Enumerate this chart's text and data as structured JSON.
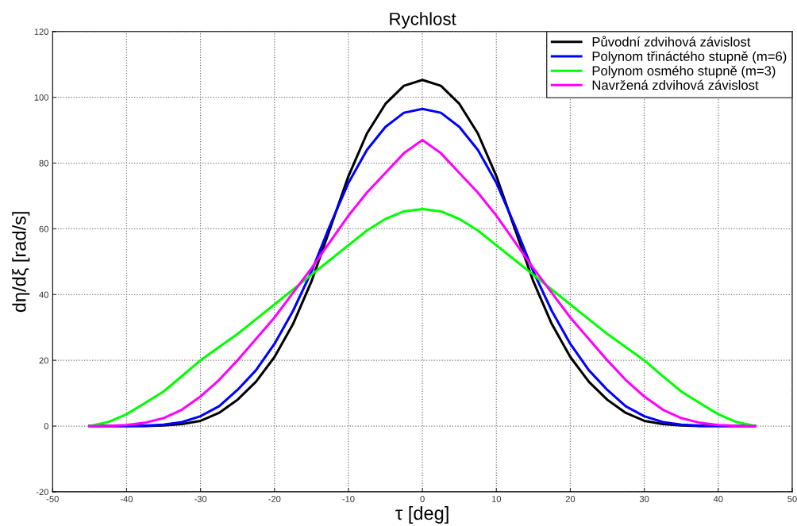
{
  "chart_data": {
    "type": "line",
    "title": "Rychlost",
    "xlabel": "τ [deg]",
    "ylabel": "dη/dξ [rad/s]",
    "x": [
      -45,
      -42.5,
      -40,
      -37.5,
      -35,
      -32.5,
      -30,
      -27.5,
      -25,
      -22.5,
      -20,
      -17.5,
      -15,
      -12.5,
      -10,
      -7.5,
      -5,
      -2.5,
      0,
      2.5,
      5,
      7.5,
      10,
      12.5,
      15,
      17.5,
      20,
      22.5,
      25,
      27.5,
      30,
      32.5,
      35,
      37.5,
      40,
      42.5,
      45
    ],
    "series": [
      {
        "name": "Původní zdvihová závislost",
        "color": "#000000",
        "values": [
          0,
          0,
          0,
          0,
          0.2,
          0.6,
          1.6,
          4,
          8,
          13.5,
          21,
          31,
          44,
          60,
          76,
          89,
          98,
          103.5,
          105.3,
          103.5,
          98,
          89,
          76,
          60,
          44,
          31,
          21,
          13.5,
          8,
          4,
          1.6,
          0.6,
          0.2,
          0,
          0,
          0,
          0
        ]
      },
      {
        "name": "Polynom třináctého stupně (m=6)",
        "color": "#0000ff",
        "values": [
          0,
          0,
          0,
          0.1,
          0.4,
          1.2,
          3,
          6,
          11,
          17,
          25,
          35,
          47,
          61,
          74,
          84,
          91,
          95.3,
          96.5,
          95.3,
          91,
          84,
          74,
          61,
          47,
          35,
          25,
          17,
          11,
          6,
          3,
          1.2,
          0.4,
          0.1,
          0,
          0,
          0
        ]
      },
      {
        "name": "Polynom osmého stupně (m=3)",
        "color": "#00ff00",
        "values": [
          0,
          1.2,
          3.6,
          7,
          10.5,
          15.2,
          20,
          24,
          28,
          32.5,
          37,
          41.5,
          46,
          50.5,
          55,
          59.5,
          63,
          65.3,
          66,
          65.3,
          63,
          59.5,
          55,
          50.5,
          46,
          41.5,
          37,
          32.5,
          28,
          24,
          20,
          15.2,
          10.5,
          7,
          3.6,
          1.2,
          0
        ]
      },
      {
        "name": "Navržená zdvihová závislost",
        "color": "#ff00ff",
        "values": [
          0,
          0.05,
          0.3,
          1,
          2.4,
          5,
          9,
          14,
          20,
          26.5,
          33,
          40.5,
          48,
          56,
          64,
          71,
          77,
          83,
          87,
          83,
          77,
          71,
          64,
          56,
          48,
          40.5,
          33,
          26.5,
          20,
          14,
          9,
          5,
          2.4,
          1,
          0.3,
          0.05,
          0
        ]
      }
    ],
    "xlim": [
      -50,
      50
    ],
    "xticks": [
      -50,
      -40,
      -30,
      -20,
      -10,
      0,
      10,
      20,
      30,
      40,
      50
    ],
    "ylim": [
      -20,
      120
    ],
    "yticks": [
      -20,
      0,
      20,
      40,
      60,
      80,
      100,
      120
    ],
    "grid": true,
    "legend": "top right",
    "line_style": "solid",
    "marker": "none"
  }
}
